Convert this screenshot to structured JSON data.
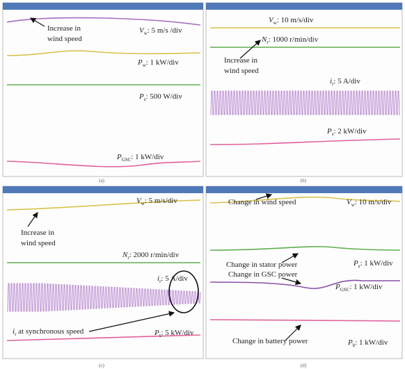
{
  "panels": [
    {
      "caption": "(a)",
      "labels": [
        {
          "sym": "V",
          "sub": "w",
          "text": ": 5 m/s /div"
        },
        {
          "sym": "P",
          "sub": "w",
          "text": ": 1 kW/div"
        },
        {
          "sym": "P",
          "sub": "s",
          "text": ": 500 W/div"
        },
        {
          "sym": "P",
          "sub": "GSC",
          "text": ": 1 kW/div"
        }
      ],
      "notes": [
        [
          "Increase in",
          "wind speed"
        ]
      ]
    },
    {
      "caption": "(b)",
      "labels": [
        {
          "sym": "V",
          "sub": "w",
          "text": ": 10 m/s/div"
        },
        {
          "sym": "N",
          "sub": "r",
          "text": ": 1000 r/min/div"
        },
        {
          "sym": "i",
          "sub": "r",
          "text": ": 5 A/div"
        },
        {
          "sym": "P",
          "sub": "s",
          "text": ": 2 kW/div"
        }
      ],
      "notes": [
        [
          "Increase in",
          "wind speed"
        ]
      ]
    },
    {
      "caption": "(c)",
      "labels": [
        {
          "sym": "V",
          "sub": "w",
          "text": ": 5 m/s/div"
        },
        {
          "sym": "N",
          "sub": "r",
          "text": ": 2000 r/min/div"
        },
        {
          "sym": "i",
          "sub": "r",
          "text": ": 5 A/div"
        },
        {
          "sym": "i",
          "sub": "r",
          "text": " at synchronous speed"
        },
        {
          "sym": "P",
          "sub": "s",
          "text": ": 5 kW/div"
        }
      ],
      "notes": [
        [
          "Increase in",
          "wind speed"
        ]
      ]
    },
    {
      "caption": "(d)",
      "labels": [
        {
          "sym": "V",
          "sub": "w",
          "text": ": 10 m/s/div"
        },
        {
          "sym": "P",
          "sub": "s",
          "text": ": 1 kW/div"
        },
        {
          "sym": "P",
          "sub": "GSC",
          "text": ": 1 kW/div"
        },
        {
          "sym": "P",
          "sub": "b",
          "text": ": 1 kW/div"
        }
      ],
      "notes": [
        [
          "Change in wind speed"
        ],
        [
          "Change in stator power"
        ],
        [
          "Change in GSC power"
        ],
        [
          "Change in battery power"
        ]
      ]
    }
  ]
}
